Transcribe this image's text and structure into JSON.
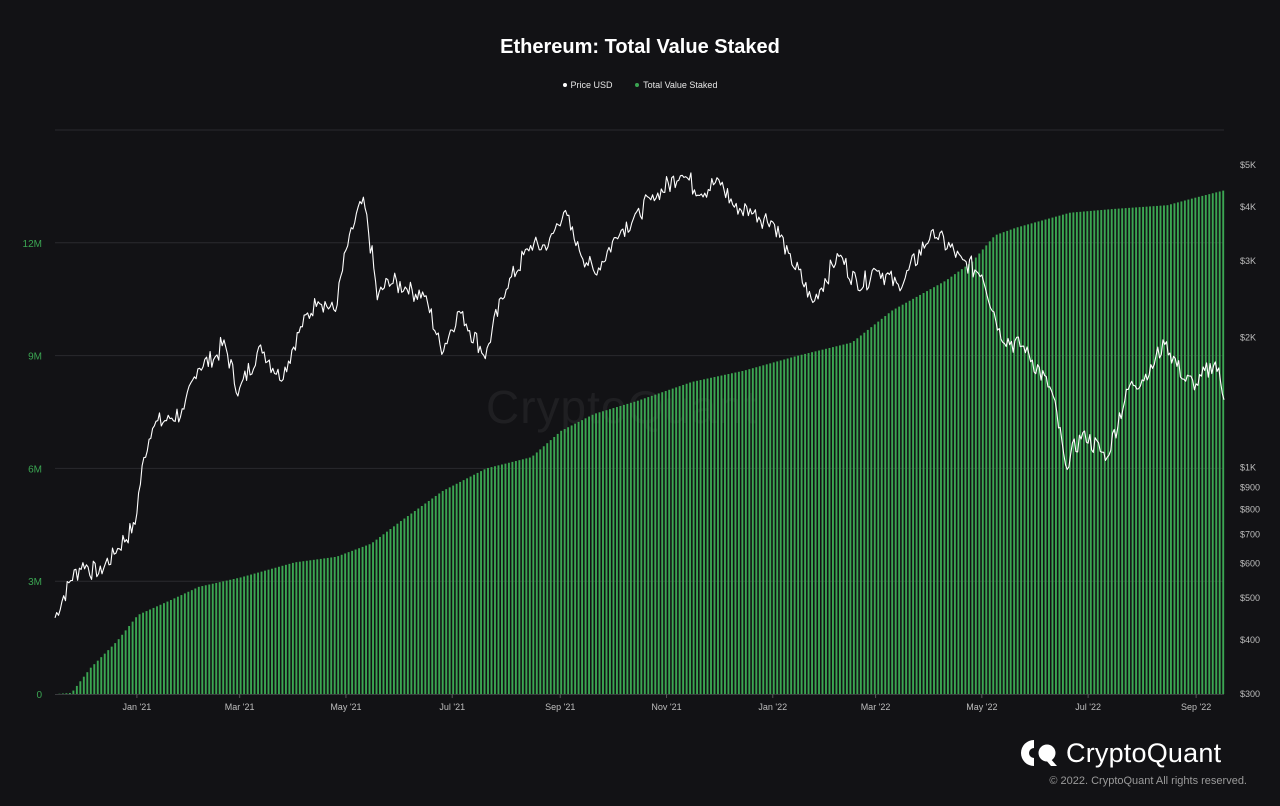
{
  "chart_data": {
    "type": "bar+line",
    "title": "Ethereum: Total Value Staked",
    "legend": [
      {
        "name": "Price USD",
        "color": "#ffffff"
      },
      {
        "name": "Total Value Staked",
        "color": "#3ba552"
      }
    ],
    "legend_position": "top-center",
    "x_range": [
      "2020-11-15",
      "2022-09-17"
    ],
    "x_ticks": [
      {
        "label": "Jan '21",
        "date": "2021-01-01"
      },
      {
        "label": "Mar '21",
        "date": "2021-03-01"
      },
      {
        "label": "May '21",
        "date": "2021-05-01"
      },
      {
        "label": "Jul '21",
        "date": "2021-07-01"
      },
      {
        "label": "Sep '21",
        "date": "2021-09-01"
      },
      {
        "label": "Nov '21",
        "date": "2021-11-01"
      },
      {
        "label": "Jan '22",
        "date": "2022-01-01"
      },
      {
        "label": "Mar '22",
        "date": "2022-03-01"
      },
      {
        "label": "May '22",
        "date": "2022-05-01"
      },
      {
        "label": "Jul '22",
        "date": "2022-07-01"
      },
      {
        "label": "Sep '22",
        "date": "2022-09-01"
      }
    ],
    "y_left": {
      "ylim": [
        0,
        15000000
      ],
      "ticks": [
        {
          "label": "0",
          "value": 0
        },
        {
          "label": "3M",
          "value": 3000000
        },
        {
          "label": "6M",
          "value": 6000000
        },
        {
          "label": "9M",
          "value": 9000000
        },
        {
          "label": "12M",
          "value": 12000000
        }
      ]
    },
    "y_right": {
      "scale": "log",
      "ylim": [
        300,
        5000
      ],
      "ticks": [
        {
          "label": "$300",
          "value": 300
        },
        {
          "label": "$400",
          "value": 400
        },
        {
          "label": "$500",
          "value": 500
        },
        {
          "label": "$600",
          "value": 600
        },
        {
          "label": "$700",
          "value": 700
        },
        {
          "label": "$800",
          "value": 800
        },
        {
          "label": "$900",
          "value": 900
        },
        {
          "label": "$1K",
          "value": 1000
        },
        {
          "label": "$2K",
          "value": 2000
        },
        {
          "label": "$3K",
          "value": 3000
        },
        {
          "label": "$4K",
          "value": 4000
        },
        {
          "label": "$5K",
          "value": 5000
        }
      ]
    },
    "grid": true,
    "series": [
      {
        "name": "Total Value Staked",
        "kind": "bar",
        "color": "#3ba552",
        "points": [
          [
            "2020-11-15",
            0
          ],
          [
            "2020-11-24",
            30000
          ],
          [
            "2020-11-30",
            400000
          ],
          [
            "2020-12-05",
            700000
          ],
          [
            "2020-12-20",
            1400000
          ],
          [
            "2021-01-01",
            2100000
          ],
          [
            "2021-01-20",
            2500000
          ],
          [
            "2021-02-05",
            2850000
          ],
          [
            "2021-03-01",
            3100000
          ],
          [
            "2021-04-01",
            3500000
          ],
          [
            "2021-04-25",
            3650000
          ],
          [
            "2021-05-15",
            4000000
          ],
          [
            "2021-06-01",
            4600000
          ],
          [
            "2021-06-25",
            5400000
          ],
          [
            "2021-07-20",
            6000000
          ],
          [
            "2021-08-15",
            6300000
          ],
          [
            "2021-09-01",
            7000000
          ],
          [
            "2021-09-20",
            7450000
          ],
          [
            "2021-10-15",
            7800000
          ],
          [
            "2021-11-15",
            8300000
          ],
          [
            "2021-12-15",
            8600000
          ],
          [
            "2022-01-15",
            9000000
          ],
          [
            "2022-02-15",
            9350000
          ],
          [
            "2022-03-10",
            10200000
          ],
          [
            "2022-04-10",
            11000000
          ],
          [
            "2022-04-25",
            11500000
          ],
          [
            "2022-05-08",
            12200000
          ],
          [
            "2022-05-20",
            12400000
          ],
          [
            "2022-06-20",
            12800000
          ],
          [
            "2022-07-15",
            12900000
          ],
          [
            "2022-08-15",
            13000000
          ],
          [
            "2022-08-31",
            13200000
          ],
          [
            "2022-09-17",
            13400000
          ]
        ]
      },
      {
        "name": "Price USD",
        "kind": "line",
        "color": "#ffffff",
        "points": [
          [
            "2020-11-15",
            450
          ],
          [
            "2020-11-24",
            550
          ],
          [
            "2020-12-01",
            600
          ],
          [
            "2020-12-10",
            570
          ],
          [
            "2020-12-20",
            640
          ],
          [
            "2020-12-31",
            740
          ],
          [
            "2021-01-05",
            1050
          ],
          [
            "2021-01-10",
            1250
          ],
          [
            "2021-01-20",
            1300
          ],
          [
            "2021-01-28",
            1350
          ],
          [
            "2021-02-05",
            1700
          ],
          [
            "2021-02-15",
            1800
          ],
          [
            "2021-02-20",
            1950
          ],
          [
            "2021-02-28",
            1480
          ],
          [
            "2021-03-13",
            1900
          ],
          [
            "2021-03-25",
            1600
          ],
          [
            "2021-04-05",
            2100
          ],
          [
            "2021-04-15",
            2450
          ],
          [
            "2021-04-25",
            2300
          ],
          [
            "2021-05-03",
            3400
          ],
          [
            "2021-05-11",
            4150
          ],
          [
            "2021-05-19",
            2450
          ],
          [
            "2021-05-25",
            2700
          ],
          [
            "2021-06-05",
            2600
          ],
          [
            "2021-06-15",
            2500
          ],
          [
            "2021-06-25",
            1850
          ],
          [
            "2021-07-05",
            2300
          ],
          [
            "2021-07-20",
            1800
          ],
          [
            "2021-08-01",
            2600
          ],
          [
            "2021-08-15",
            3250
          ],
          [
            "2021-08-25",
            3250
          ],
          [
            "2021-09-03",
            3900
          ],
          [
            "2021-09-10",
            3300
          ],
          [
            "2021-09-21",
            2800
          ],
          [
            "2021-10-05",
            3500
          ],
          [
            "2021-10-15",
            3850
          ],
          [
            "2021-10-25",
            4200
          ],
          [
            "2021-11-10",
            4800
          ],
          [
            "2021-11-20",
            4300
          ],
          [
            "2021-12-01",
            4600
          ],
          [
            "2021-12-10",
            4000
          ],
          [
            "2021-12-20",
            3900
          ],
          [
            "2022-01-01",
            3700
          ],
          [
            "2022-01-10",
            3100
          ],
          [
            "2022-01-24",
            2400
          ],
          [
            "2022-02-08",
            3100
          ],
          [
            "2022-02-20",
            2600
          ],
          [
            "2022-03-01",
            2900
          ],
          [
            "2022-03-15",
            2600
          ],
          [
            "2022-04-03",
            3500
          ],
          [
            "2022-04-20",
            3000
          ],
          [
            "2022-05-01",
            2800
          ],
          [
            "2022-05-12",
            2000
          ],
          [
            "2022-05-25",
            1900
          ],
          [
            "2022-06-10",
            1500
          ],
          [
            "2022-06-18",
            1000
          ],
          [
            "2022-06-28",
            1200
          ],
          [
            "2022-07-12",
            1050
          ],
          [
            "2022-07-25",
            1550
          ],
          [
            "2022-08-05",
            1650
          ],
          [
            "2022-08-14",
            1950
          ],
          [
            "2022-08-25",
            1600
          ],
          [
            "2022-09-01",
            1550
          ],
          [
            "2022-09-12",
            1750
          ],
          [
            "2022-09-17",
            1450
          ]
        ]
      }
    ]
  },
  "branding": {
    "watermark": "CryptoQuant",
    "brand_name": "CryptoQuant",
    "copyright": "© 2022. CryptoQuant All rights reserved."
  }
}
